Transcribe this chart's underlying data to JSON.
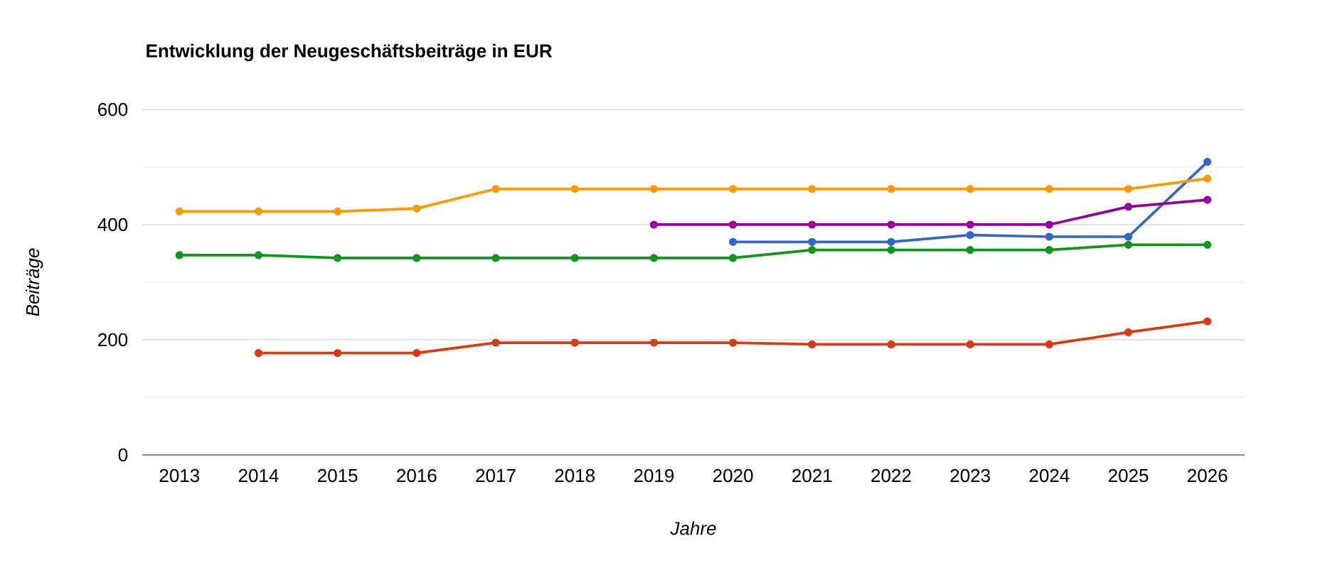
{
  "chart_data": {
    "type": "line",
    "title": "Entwicklung der Neugeschäftsbeiträge in EUR",
    "xlabel": "Jahre",
    "ylabel": "Beiträge",
    "categories": [
      "2013",
      "2014",
      "2015",
      "2016",
      "2017",
      "2018",
      "2019",
      "2020",
      "2021",
      "2022",
      "2023",
      "2024",
      "2025",
      "2026"
    ],
    "series": [
      {
        "color": "#3366cc",
        "values": [
          null,
          null,
          null,
          null,
          null,
          null,
          null,
          370,
          370,
          370,
          382,
          379,
          379,
          509
        ]
      },
      {
        "color": "#dc3912",
        "values": [
          null,
          177,
          177,
          177,
          195,
          195,
          195,
          195,
          192,
          192,
          192,
          192,
          213,
          232
        ]
      },
      {
        "color": "#ff9900",
        "values": [
          423,
          423,
          423,
          428,
          462,
          462,
          462,
          462,
          462,
          462,
          462,
          462,
          462,
          480
        ]
      },
      {
        "color": "#109618",
        "values": [
          347,
          347,
          342,
          342,
          342,
          342,
          342,
          342,
          356,
          356,
          356,
          356,
          365,
          365
        ]
      },
      {
        "color": "#990099",
        "values": [
          null,
          null,
          null,
          null,
          null,
          null,
          400,
          400,
          400,
          400,
          400,
          400,
          431,
          443
        ]
      }
    ],
    "ylim": [
      0,
      600
    ],
    "yticks": [
      0,
      200,
      400,
      600
    ],
    "grid": true,
    "marker": "circle",
    "line_style": "solid"
  }
}
